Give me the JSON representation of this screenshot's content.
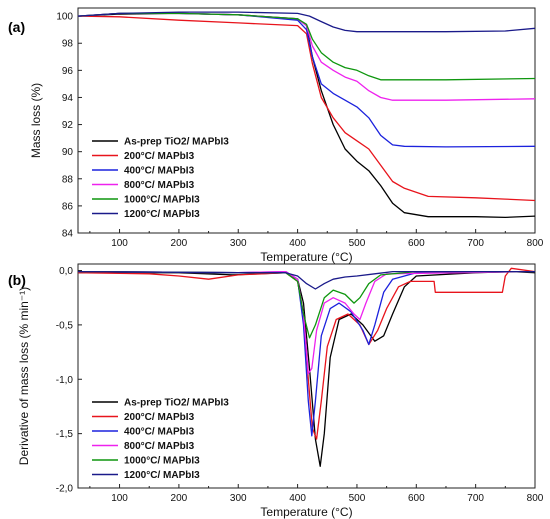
{
  "figure": {
    "panels": [
      "(a)",
      "(b)"
    ]
  },
  "chart_data": [
    {
      "panel": "(a)",
      "type": "line",
      "xlabel": "Temperature (°C)",
      "ylabel": "Mass loss (%)",
      "xlim": [
        30,
        800
      ],
      "ylim": [
        84,
        100.6
      ],
      "xticks": [
        100,
        200,
        300,
        400,
        500,
        600,
        700,
        800
      ],
      "yticks": [
        84,
        86,
        88,
        90,
        92,
        94,
        96,
        98,
        100
      ],
      "legend_position": "lower-left",
      "series": [
        {
          "name": "As-prep TiO2/ MAPbI3",
          "color": "#000000",
          "points": [
            [
              30,
              100
            ],
            [
              100,
              100.15
            ],
            [
              200,
              100.2
            ],
            [
              300,
              100.1
            ],
            [
              400,
              99.8
            ],
            [
              415,
              99.3
            ],
            [
              425,
              97.0
            ],
            [
              440,
              94.5
            ],
            [
              460,
              92.0
            ],
            [
              480,
              90.2
            ],
            [
              500,
              89.3
            ],
            [
              520,
              88.6
            ],
            [
              540,
              87.5
            ],
            [
              560,
              86.2
            ],
            [
              580,
              85.5
            ],
            [
              620,
              85.2
            ],
            [
              700,
              85.2
            ],
            [
              750,
              85.15
            ],
            [
              800,
              85.25
            ]
          ]
        },
        {
          "name": "200°C/ MAPbI3",
          "color": "#e8141c",
          "points": [
            [
              30,
              100
            ],
            [
              100,
              99.95
            ],
            [
              200,
              99.7
            ],
            [
              300,
              99.5
            ],
            [
              400,
              99.3
            ],
            [
              415,
              98.7
            ],
            [
              425,
              96.5
            ],
            [
              440,
              94.0
            ],
            [
              460,
              92.5
            ],
            [
              480,
              91.4
            ],
            [
              500,
              90.8
            ],
            [
              520,
              90.2
            ],
            [
              540,
              89.0
            ],
            [
              560,
              87.8
            ],
            [
              580,
              87.3
            ],
            [
              620,
              86.7
            ],
            [
              700,
              86.6
            ],
            [
              750,
              86.5
            ],
            [
              800,
              86.4
            ]
          ]
        },
        {
          "name": "400°C/ MAPbI3",
          "color": "#1c22dd",
          "points": [
            [
              30,
              100
            ],
            [
              100,
              100.2
            ],
            [
              200,
              100.2
            ],
            [
              300,
              100.1
            ],
            [
              400,
              99.7
            ],
            [
              415,
              99.0
            ],
            [
              425,
              97.0
            ],
            [
              440,
              95.0
            ],
            [
              460,
              94.3
            ],
            [
              480,
              93.8
            ],
            [
              500,
              93.3
            ],
            [
              520,
              92.5
            ],
            [
              540,
              91.2
            ],
            [
              560,
              90.5
            ],
            [
              580,
              90.4
            ],
            [
              650,
              90.35
            ],
            [
              800,
              90.4
            ]
          ]
        },
        {
          "name": "800°C/ MAPbI3",
          "color": "#ee22ee",
          "points": [
            [
              30,
              100
            ],
            [
              100,
              100.2
            ],
            [
              200,
              100.2
            ],
            [
              300,
              100.1
            ],
            [
              400,
              99.8
            ],
            [
              415,
              99.3
            ],
            [
              425,
              97.8
            ],
            [
              440,
              96.6
            ],
            [
              460,
              96.0
            ],
            [
              480,
              95.5
            ],
            [
              500,
              95.2
            ],
            [
              520,
              94.5
            ],
            [
              540,
              94.0
            ],
            [
              560,
              93.8
            ],
            [
              650,
              93.8
            ],
            [
              800,
              93.9
            ]
          ]
        },
        {
          "name": "1000°C/ MAPbI3",
          "color": "#0e960e",
          "points": [
            [
              30,
              100
            ],
            [
              100,
              100.2
            ],
            [
              200,
              100.2
            ],
            [
              300,
              100.1
            ],
            [
              400,
              99.8
            ],
            [
              415,
              99.4
            ],
            [
              425,
              98.3
            ],
            [
              440,
              97.3
            ],
            [
              460,
              96.6
            ],
            [
              480,
              96.2
            ],
            [
              500,
              96.0
            ],
            [
              520,
              95.6
            ],
            [
              540,
              95.3
            ],
            [
              560,
              95.3
            ],
            [
              650,
              95.3
            ],
            [
              800,
              95.4
            ]
          ]
        },
        {
          "name": "1200°C/ MAPbI3",
          "color": "#1a1a8a",
          "points": [
            [
              30,
              100
            ],
            [
              100,
              100.2
            ],
            [
              200,
              100.3
            ],
            [
              300,
              100.3
            ],
            [
              400,
              100.2
            ],
            [
              420,
              100.0
            ],
            [
              440,
              99.6
            ],
            [
              460,
              99.2
            ],
            [
              480,
              98.95
            ],
            [
              500,
              98.85
            ],
            [
              550,
              98.85
            ],
            [
              650,
              98.85
            ],
            [
              750,
              98.9
            ],
            [
              800,
              99.1
            ]
          ]
        }
      ]
    },
    {
      "panel": "(b)",
      "type": "line",
      "xlabel": "Temperature (°C)",
      "ylabel": "Derivative of mass loss (% min⁻¹)",
      "xlim": [
        30,
        800
      ],
      "ylim": [
        -2.0,
        0.06
      ],
      "xticks": [
        100,
        200,
        300,
        400,
        500,
        600,
        700,
        800
      ],
      "yticks": [
        0.0,
        -0.5,
        -1.0,
        -1.5,
        -2.0
      ],
      "ytick_labels": [
        "0,0",
        "-0,5",
        "-1,0",
        "-1,5",
        "-2,0"
      ],
      "legend_position": "lower-left",
      "series": [
        {
          "name": "As-prep TiO2/ MAPbI3",
          "color": "#000000",
          "points": [
            [
              30,
              -0.02
            ],
            [
              200,
              -0.02
            ],
            [
              290,
              -0.04
            ],
            [
              380,
              -0.02
            ],
            [
              400,
              -0.08
            ],
            [
              410,
              -0.3
            ],
            [
              420,
              -0.9
            ],
            [
              430,
              -1.55
            ],
            [
              438,
              -1.8
            ],
            [
              445,
              -1.5
            ],
            [
              455,
              -0.8
            ],
            [
              470,
              -0.45
            ],
            [
              490,
              -0.4
            ],
            [
              510,
              -0.5
            ],
            [
              530,
              -0.65
            ],
            [
              545,
              -0.6
            ],
            [
              560,
              -0.4
            ],
            [
              580,
              -0.15
            ],
            [
              600,
              -0.05
            ],
            [
              700,
              -0.02
            ],
            [
              760,
              -0.01
            ],
            [
              800,
              -0.02
            ]
          ]
        },
        {
          "name": "200°C/ MAPbI3",
          "color": "#e8141c",
          "points": [
            [
              30,
              -0.02
            ],
            [
              150,
              -0.03
            ],
            [
              200,
              -0.05
            ],
            [
              250,
              -0.08
            ],
            [
              300,
              -0.04
            ],
            [
              380,
              -0.02
            ],
            [
              400,
              -0.1
            ],
            [
              410,
              -0.4
            ],
            [
              418,
              -1.0
            ],
            [
              425,
              -1.45
            ],
            [
              432,
              -1.55
            ],
            [
              440,
              -1.2
            ],
            [
              450,
              -0.7
            ],
            [
              465,
              -0.45
            ],
            [
              485,
              -0.4
            ],
            [
              505,
              -0.5
            ],
            [
              520,
              -0.68
            ],
            [
              535,
              -0.55
            ],
            [
              550,
              -0.35
            ],
            [
              570,
              -0.15
            ],
            [
              590,
              -0.1
            ],
            [
              630,
              -0.1
            ],
            [
              632,
              -0.2
            ],
            [
              700,
              -0.2
            ],
            [
              745,
              -0.2
            ],
            [
              750,
              -0.05
            ],
            [
              760,
              0.02
            ],
            [
              800,
              -0.01
            ]
          ]
        },
        {
          "name": "400°C/ MAPbI3",
          "color": "#1c22dd",
          "points": [
            [
              30,
              -0.01
            ],
            [
              300,
              -0.02
            ],
            [
              380,
              -0.01
            ],
            [
              400,
              -0.08
            ],
            [
              410,
              -0.5
            ],
            [
              418,
              -1.2
            ],
            [
              424,
              -1.52
            ],
            [
              430,
              -1.2
            ],
            [
              440,
              -0.6
            ],
            [
              455,
              -0.35
            ],
            [
              470,
              -0.3
            ],
            [
              490,
              -0.38
            ],
            [
              510,
              -0.55
            ],
            [
              520,
              -0.68
            ],
            [
              530,
              -0.5
            ],
            [
              545,
              -0.2
            ],
            [
              560,
              -0.08
            ],
            [
              600,
              -0.02
            ],
            [
              800,
              -0.01
            ]
          ]
        },
        {
          "name": "800°C/ MAPbI3",
          "color": "#ee22ee",
          "points": [
            [
              30,
              -0.01
            ],
            [
              300,
              -0.02
            ],
            [
              380,
              -0.01
            ],
            [
              400,
              -0.08
            ],
            [
              410,
              -0.4
            ],
            [
              418,
              -0.95
            ],
            [
              424,
              -0.9
            ],
            [
              432,
              -0.55
            ],
            [
              445,
              -0.3
            ],
            [
              460,
              -0.25
            ],
            [
              480,
              -0.3
            ],
            [
              495,
              -0.4
            ],
            [
              505,
              -0.45
            ],
            [
              515,
              -0.3
            ],
            [
              530,
              -0.1
            ],
            [
              550,
              -0.03
            ],
            [
              800,
              -0.01
            ]
          ]
        },
        {
          "name": "1000°C/ MAPbI3",
          "color": "#0e960e",
          "points": [
            [
              30,
              -0.01
            ],
            [
              300,
              -0.02
            ],
            [
              380,
              -0.02
            ],
            [
              400,
              -0.1
            ],
            [
              410,
              -0.4
            ],
            [
              420,
              -0.62
            ],
            [
              430,
              -0.5
            ],
            [
              445,
              -0.25
            ],
            [
              460,
              -0.18
            ],
            [
              480,
              -0.22
            ],
            [
              495,
              -0.3
            ],
            [
              505,
              -0.25
            ],
            [
              520,
              -0.12
            ],
            [
              540,
              -0.04
            ],
            [
              600,
              -0.01
            ],
            [
              800,
              -0.01
            ]
          ]
        },
        {
          "name": "1200°C/ MAPbI3",
          "color": "#1a1a8a",
          "points": [
            [
              30,
              -0.01
            ],
            [
              300,
              -0.02
            ],
            [
              380,
              -0.02
            ],
            [
              400,
              -0.05
            ],
            [
              415,
              -0.12
            ],
            [
              430,
              -0.17
            ],
            [
              445,
              -0.12
            ],
            [
              460,
              -0.08
            ],
            [
              480,
              -0.06
            ],
            [
              500,
              -0.05
            ],
            [
              530,
              -0.03
            ],
            [
              560,
              -0.01
            ],
            [
              800,
              -0.01
            ]
          ]
        }
      ]
    }
  ]
}
